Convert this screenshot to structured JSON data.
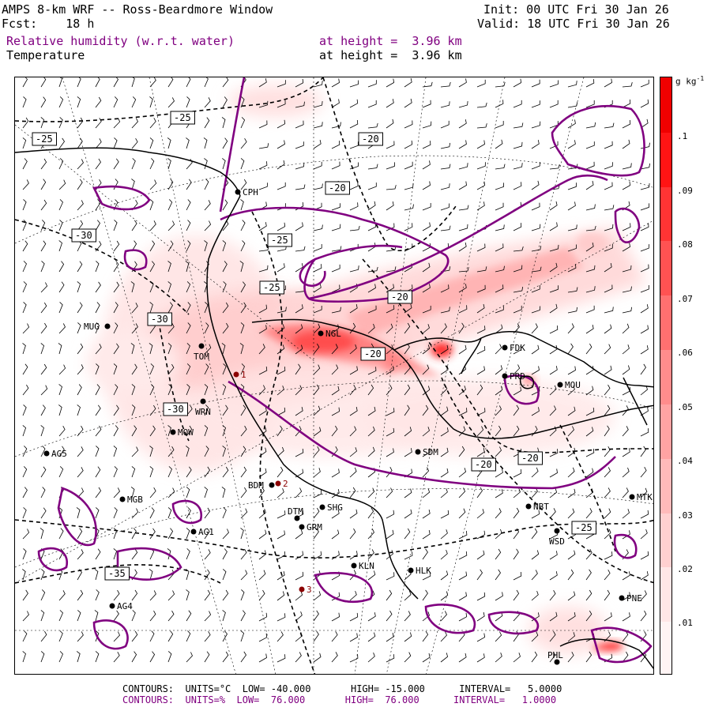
{
  "header": {
    "title": "AMPS 8-km WRF -- Ross-Beardmore Window",
    "fcst": "Fcst:    18 h",
    "init": "Init: 00 UTC Fri 30 Jan 26",
    "valid": "Valid: 18 UTC Fri 30 Jan 26",
    "field1_name": "Relative humidity (w.r.t. water)",
    "field1_height": "at height =  3.96 km",
    "field2_name": "Temperature",
    "field2_height": "at height =  3.96 km"
  },
  "colorbar": {
    "unit": "g kg",
    "unit_sup": "-1",
    "ticks": [
      ".01",
      ".02",
      ".03",
      ".04",
      ".05",
      ".06",
      ".07",
      ".08",
      ".09",
      ".1"
    ],
    "colors": [
      "#fff4f4",
      "#ffe6e6",
      "#ffd0d0",
      "#ffbaba",
      "#ffa3a3",
      "#ff8c8c",
      "#ff7070",
      "#ff5252",
      "#ff3434",
      "#ff1414",
      "#f00000"
    ]
  },
  "footer": {
    "line1": "CONTOURS:  UNITS=°C  LOW= -40.000       HIGH= -15.000      INTERVAL=   5.0000",
    "line2": "CONTOURS:  UNITS=%  LOW=  76.000       HIGH=  76.000      INTERVAL=   1.0000"
  },
  "colors": {
    "rh_contour": "#800080",
    "temp_contour": "#000000",
    "station_dot": "#000000",
    "marker_dot": "#8b0000",
    "shading": "#ff0000"
  },
  "isotherm_labels": [
    "-25",
    "-25",
    "-20",
    "-20",
    "-30",
    "-25",
    "-25",
    "-30",
    "-20",
    "-30",
    "-20",
    "-20",
    "-20",
    "-25",
    "-35"
  ],
  "stations": [
    "CPH",
    "MUG",
    "TOM",
    "NGL",
    "FDK",
    "PRD",
    "MOU",
    "WRN",
    "MOW",
    "AG5",
    "SDM",
    "BDM",
    "MGB",
    "SHG",
    "DTM",
    "GRM",
    "NBT",
    "MTK",
    "AG1",
    "WSD",
    "KLN",
    "HLK",
    "AG4",
    "PNE",
    "PHL"
  ],
  "markers": [
    "1",
    "2",
    "3"
  ]
}
